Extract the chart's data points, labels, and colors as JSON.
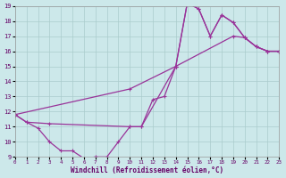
{
  "xlabel": "Windchill (Refroidissement éolien,°C)",
  "background_color": "#cce8ea",
  "grid_color": "#aacccc",
  "line_color": "#993399",
  "xmin": 0,
  "xmax": 23,
  "ymin": 9,
  "ymax": 19,
  "yticks": [
    9,
    10,
    11,
    12,
    13,
    14,
    15,
    16,
    17,
    18,
    19
  ],
  "xticks": [
    0,
    1,
    2,
    3,
    4,
    5,
    6,
    7,
    8,
    9,
    10,
    11,
    12,
    13,
    14,
    15,
    16,
    17,
    18,
    19,
    20,
    21,
    22,
    23
  ],
  "line1_x": [
    0,
    1,
    2,
    3,
    4,
    5,
    6,
    7,
    8,
    9,
    10,
    11,
    12,
    13,
    14,
    15,
    16,
    17,
    18,
    19,
    20,
    21,
    22,
    23
  ],
  "line1_y": [
    11.8,
    11.3,
    10.9,
    10.0,
    9.4,
    9.4,
    8.9,
    9.0,
    9.0,
    10.0,
    11.0,
    11.0,
    12.8,
    13.0,
    15.0,
    19.2,
    18.8,
    17.0,
    18.4,
    17.9,
    16.9,
    16.3,
    16.0,
    16.0
  ],
  "line2_x": [
    0,
    1,
    3,
    10,
    11,
    14,
    15,
    16,
    17,
    18,
    19,
    20,
    21,
    22,
    23
  ],
  "line2_y": [
    11.8,
    11.3,
    11.2,
    11.0,
    11.0,
    15.0,
    19.2,
    18.8,
    17.0,
    18.4,
    17.9,
    16.9,
    16.3,
    16.0,
    16.0
  ],
  "line3_x": [
    0,
    10,
    14,
    19,
    20,
    21,
    22,
    23
  ],
  "line3_y": [
    11.8,
    13.5,
    15.0,
    17.0,
    16.9,
    16.3,
    16.0,
    16.0
  ]
}
